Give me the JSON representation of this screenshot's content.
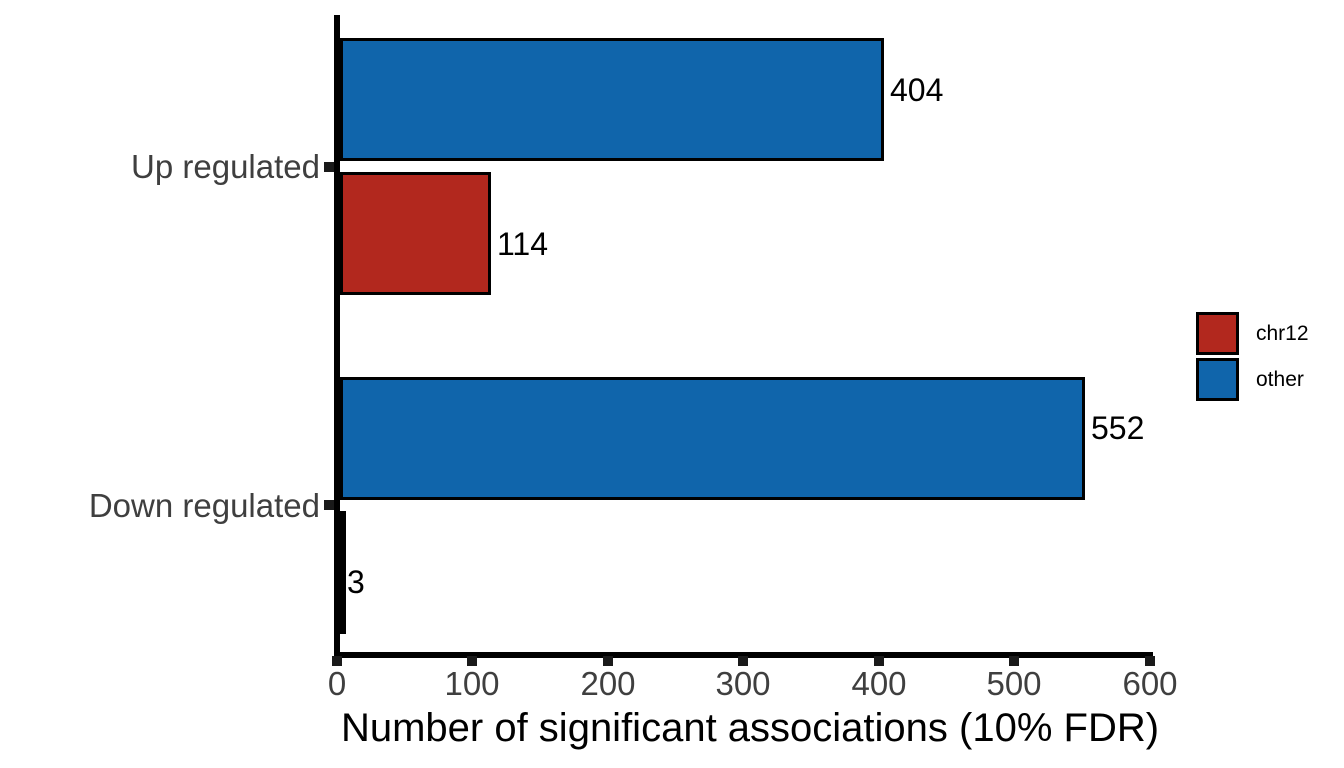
{
  "chart_data": {
    "type": "bar",
    "orientation": "horizontal",
    "title": "",
    "xlabel": "Number of significant associations (10% FDR)",
    "ylabel": "",
    "categories": [
      "Up regulated",
      "Down regulated"
    ],
    "series": [
      {
        "name": "chr12",
        "color": "#b2281e",
        "values": [
          114,
          3
        ]
      },
      {
        "name": "other",
        "color": "#1065ab",
        "values": [
          404,
          552
        ]
      }
    ],
    "bar_order_top_to_bottom": [
      "other",
      "chr12"
    ],
    "value_labels": {
      "show": true,
      "other": [
        404,
        552
      ],
      "chr12": [
        114,
        3
      ]
    },
    "x_ticks": [
      0,
      100,
      200,
      300,
      400,
      500,
      600
    ],
    "xlim": [
      0,
      600
    ],
    "grid": false,
    "legend": {
      "position": "right",
      "entries": [
        {
          "label": "chr12",
          "color": "#b2281e"
        },
        {
          "label": "other",
          "color": "#1065ab"
        }
      ]
    },
    "colors": {
      "bar_border": "#000000",
      "axis": "#000000",
      "axis_text": "#3f3f3f",
      "label_text": "#000000",
      "background": "#ffffff"
    }
  }
}
